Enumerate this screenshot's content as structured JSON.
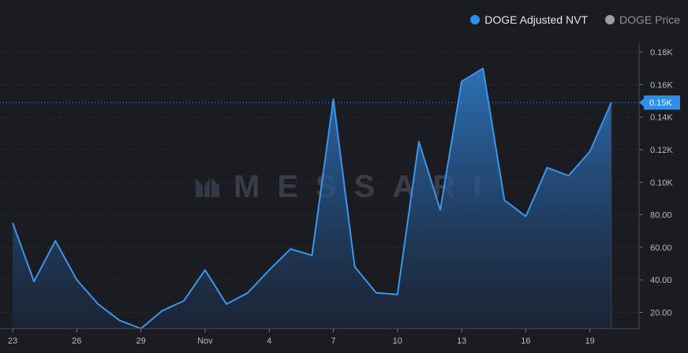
{
  "legend": {
    "items": [
      {
        "label": "DOGE Adjusted NVT",
        "color": "#2f8ee8",
        "active": true
      },
      {
        "label": "DOGE Price",
        "color": "#9a9ca6",
        "active": false
      }
    ]
  },
  "watermark": "MESSARI",
  "current_value_tag": "0.15K",
  "colors": {
    "background": "#1b1c22",
    "line": "#3d95ea",
    "tag": "#2f8ee8",
    "grid": "#353843"
  },
  "chart_data": {
    "type": "area",
    "series": [
      {
        "name": "DOGE Adjusted NVT",
        "values": [
          75,
          39,
          64,
          40,
          25,
          15,
          10,
          21,
          27,
          46,
          25,
          32,
          46,
          59,
          55,
          151,
          48,
          32,
          31,
          125,
          83,
          162,
          170,
          89,
          79,
          109,
          104,
          119,
          149
        ]
      }
    ],
    "x_tick_labels": [
      "23",
      "26",
      "29",
      "Nov",
      "4",
      "7",
      "10",
      "13",
      "16",
      "19"
    ],
    "x_tick_index": [
      0,
      3,
      6,
      9,
      12,
      15,
      18,
      21,
      24,
      27
    ],
    "y_tick_labels": [
      "20.00",
      "40.00",
      "60.00",
      "80.00",
      "0.10K",
      "0.12K",
      "0.14K",
      "0.16K",
      "0.18K"
    ],
    "y_tick_values": [
      20,
      40,
      60,
      80,
      100,
      120,
      140,
      160,
      180
    ],
    "ylim": [
      10,
      183
    ],
    "grid": true,
    "legend_position": "top-right",
    "current_value": 149
  }
}
